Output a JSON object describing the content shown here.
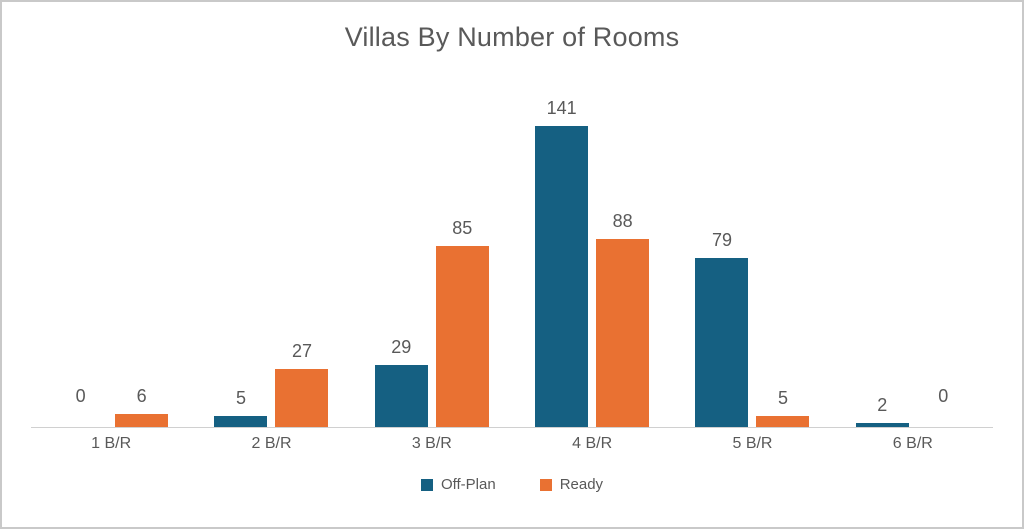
{
  "chart_data": {
    "type": "bar",
    "title": "Villas By Number of Rooms",
    "categories": [
      "1 B/R",
      "2 B/R",
      "3 B/R",
      "4 B/R",
      "5 B/R",
      "6 B/R"
    ],
    "series": [
      {
        "name": "Off-Plan",
        "color": "#156082",
        "values": [
          0,
          5,
          29,
          141,
          79,
          2
        ]
      },
      {
        "name": "Ready",
        "color": "#E97132",
        "values": [
          6,
          27,
          85,
          88,
          5,
          0
        ]
      }
    ],
    "ylim": [
      0,
      150
    ],
    "grid": false,
    "legend_position": "bottom",
    "data_labels": true
  },
  "styles": {
    "text_color": "#595959",
    "axis_line_color": "#d0d0d0",
    "frame_border_color": "#c9c9c9",
    "background": "#ffffff"
  }
}
